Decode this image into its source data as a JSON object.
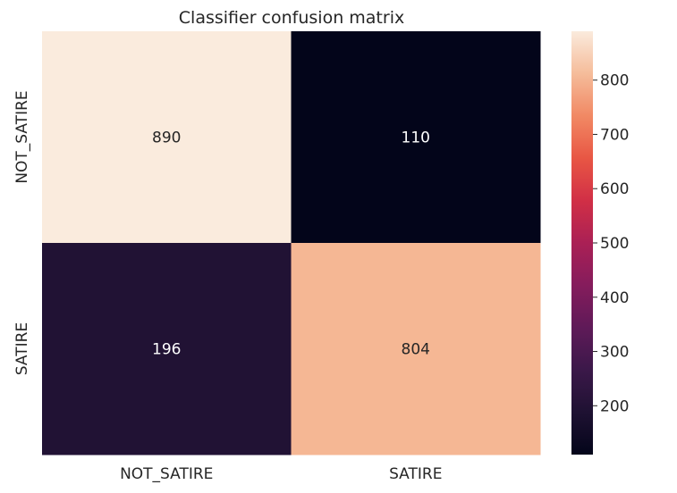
{
  "chart_data": {
    "type": "heatmap",
    "title": "Classifier confusion matrix",
    "x_categories": [
      "NOT_SATIRE",
      "SATIRE"
    ],
    "y_categories": [
      "NOT_SATIRE",
      "SATIRE"
    ],
    "values": [
      [
        890,
        110
      ],
      [
        196,
        804
      ]
    ],
    "xlabel": "",
    "ylabel": "",
    "colormap": "rocket",
    "colorbar": {
      "min": 110,
      "max": 890,
      "ticks": [
        200,
        300,
        400,
        500,
        600,
        700,
        800
      ]
    },
    "colors": {
      "low": "#03051a",
      "high": "#faebdd"
    }
  }
}
